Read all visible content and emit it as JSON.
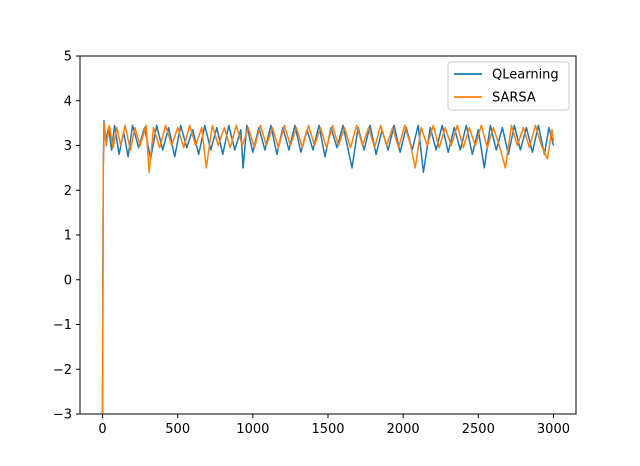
{
  "chart_data": {
    "type": "line",
    "title": "",
    "xlabel": "",
    "ylabel": "",
    "xlim": [
      -150,
      3150
    ],
    "ylim": [
      -3,
      5
    ],
    "grid": false,
    "legend_position": "top-right",
    "x_ticks": [
      {
        "value": 0,
        "label": "0"
      },
      {
        "value": 500,
        "label": "500"
      },
      {
        "value": 1000,
        "label": "1000"
      },
      {
        "value": 1500,
        "label": "1500"
      },
      {
        "value": 2000,
        "label": "2000"
      },
      {
        "value": 2500,
        "label": "2500"
      },
      {
        "value": 3000,
        "label": "3000"
      }
    ],
    "y_ticks": [
      {
        "value": -3,
        "label": "−3"
      },
      {
        "value": -2,
        "label": "−2"
      },
      {
        "value": -1,
        "label": "−1"
      },
      {
        "value": 0,
        "label": "0"
      },
      {
        "value": 1,
        "label": "1"
      },
      {
        "value": 2,
        "label": "2"
      },
      {
        "value": 3,
        "label": "3"
      },
      {
        "value": 4,
        "label": "4"
      },
      {
        "value": 5,
        "label": "5"
      }
    ],
    "series": [
      {
        "name": "QLearning",
        "color": "#1f77b4",
        "points": [
          [
            0,
            -3.0
          ],
          [
            5,
            2.6
          ],
          [
            10,
            3.55
          ],
          [
            20,
            3.1
          ],
          [
            40,
            3.4
          ],
          [
            60,
            2.9
          ],
          [
            80,
            3.45
          ],
          [
            110,
            2.8
          ],
          [
            140,
            3.3
          ],
          [
            170,
            2.75
          ],
          [
            200,
            3.45
          ],
          [
            240,
            2.95
          ],
          [
            280,
            3.4
          ],
          [
            320,
            2.7
          ],
          [
            360,
            3.45
          ],
          [
            400,
            2.9
          ],
          [
            440,
            3.4
          ],
          [
            480,
            2.75
          ],
          [
            520,
            3.45
          ],
          [
            560,
            2.95
          ],
          [
            600,
            3.35
          ],
          [
            640,
            2.8
          ],
          [
            680,
            3.45
          ],
          [
            720,
            2.9
          ],
          [
            760,
            3.4
          ],
          [
            800,
            2.8
          ],
          [
            840,
            3.45
          ],
          [
            880,
            2.9
          ],
          [
            920,
            3.35
          ],
          [
            935,
            2.5
          ],
          [
            960,
            3.45
          ],
          [
            1000,
            2.85
          ],
          [
            1040,
            3.4
          ],
          [
            1080,
            2.9
          ],
          [
            1120,
            3.45
          ],
          [
            1160,
            2.8
          ],
          [
            1200,
            3.4
          ],
          [
            1240,
            2.9
          ],
          [
            1280,
            3.45
          ],
          [
            1320,
            2.85
          ],
          [
            1360,
            3.35
          ],
          [
            1400,
            2.9
          ],
          [
            1440,
            3.45
          ],
          [
            1480,
            2.75
          ],
          [
            1520,
            3.4
          ],
          [
            1560,
            2.95
          ],
          [
            1600,
            3.45
          ],
          [
            1660,
            2.5
          ],
          [
            1700,
            3.4
          ],
          [
            1740,
            2.9
          ],
          [
            1780,
            3.45
          ],
          [
            1820,
            2.8
          ],
          [
            1860,
            3.35
          ],
          [
            1900,
            2.9
          ],
          [
            1940,
            3.45
          ],
          [
            1980,
            2.85
          ],
          [
            2020,
            3.4
          ],
          [
            2060,
            2.9
          ],
          [
            2100,
            3.45
          ],
          [
            2135,
            2.4
          ],
          [
            2180,
            3.4
          ],
          [
            2220,
            2.9
          ],
          [
            2260,
            3.45
          ],
          [
            2300,
            2.85
          ],
          [
            2340,
            3.4
          ],
          [
            2380,
            2.9
          ],
          [
            2420,
            3.45
          ],
          [
            2460,
            2.8
          ],
          [
            2500,
            3.35
          ],
          [
            2540,
            2.5
          ],
          [
            2580,
            3.45
          ],
          [
            2620,
            2.9
          ],
          [
            2660,
            3.4
          ],
          [
            2700,
            2.8
          ],
          [
            2740,
            3.45
          ],
          [
            2780,
            2.9
          ],
          [
            2820,
            3.4
          ],
          [
            2860,
            2.85
          ],
          [
            2900,
            3.45
          ],
          [
            2940,
            2.8
          ],
          [
            2970,
            3.4
          ],
          [
            3000,
            3.0
          ]
        ]
      },
      {
        "name": "SARSA",
        "color": "#ff7f0e",
        "points": [
          [
            0,
            -3.0
          ],
          [
            5,
            2.5
          ],
          [
            12,
            3.5
          ],
          [
            25,
            3.0
          ],
          [
            45,
            3.45
          ],
          [
            70,
            2.95
          ],
          [
            95,
            3.4
          ],
          [
            120,
            3.0
          ],
          [
            150,
            3.45
          ],
          [
            185,
            2.9
          ],
          [
            215,
            3.4
          ],
          [
            250,
            3.0
          ],
          [
            290,
            3.45
          ],
          [
            310,
            2.4
          ],
          [
            340,
            3.4
          ],
          [
            380,
            2.95
          ],
          [
            420,
            3.45
          ],
          [
            460,
            3.0
          ],
          [
            500,
            3.4
          ],
          [
            540,
            2.95
          ],
          [
            580,
            3.45
          ],
          [
            620,
            3.0
          ],
          [
            660,
            3.4
          ],
          [
            690,
            2.5
          ],
          [
            730,
            3.45
          ],
          [
            770,
            3.0
          ],
          [
            810,
            3.4
          ],
          [
            850,
            2.95
          ],
          [
            890,
            3.45
          ],
          [
            930,
            3.0
          ],
          [
            970,
            3.4
          ],
          [
            1010,
            2.95
          ],
          [
            1050,
            3.45
          ],
          [
            1090,
            3.0
          ],
          [
            1130,
            3.4
          ],
          [
            1170,
            2.95
          ],
          [
            1210,
            3.45
          ],
          [
            1250,
            3.0
          ],
          [
            1290,
            3.4
          ],
          [
            1330,
            2.95
          ],
          [
            1370,
            3.45
          ],
          [
            1410,
            3.0
          ],
          [
            1450,
            3.4
          ],
          [
            1490,
            2.95
          ],
          [
            1530,
            3.45
          ],
          [
            1570,
            3.0
          ],
          [
            1610,
            3.4
          ],
          [
            1650,
            2.95
          ],
          [
            1690,
            3.45
          ],
          [
            1730,
            3.0
          ],
          [
            1770,
            3.4
          ],
          [
            1810,
            2.95
          ],
          [
            1850,
            3.45
          ],
          [
            1890,
            3.0
          ],
          [
            1930,
            3.4
          ],
          [
            1970,
            2.95
          ],
          [
            2010,
            3.45
          ],
          [
            2050,
            3.0
          ],
          [
            2080,
            2.5
          ],
          [
            2120,
            3.4
          ],
          [
            2160,
            3.0
          ],
          [
            2200,
            3.45
          ],
          [
            2240,
            2.95
          ],
          [
            2280,
            3.4
          ],
          [
            2320,
            3.0
          ],
          [
            2360,
            3.45
          ],
          [
            2400,
            2.95
          ],
          [
            2440,
            3.4
          ],
          [
            2480,
            3.0
          ],
          [
            2520,
            3.45
          ],
          [
            2560,
            2.95
          ],
          [
            2600,
            3.4
          ],
          [
            2640,
            3.0
          ],
          [
            2680,
            2.5
          ],
          [
            2720,
            3.45
          ],
          [
            2760,
            3.0
          ],
          [
            2800,
            3.4
          ],
          [
            2840,
            2.95
          ],
          [
            2880,
            3.45
          ],
          [
            2920,
            3.0
          ],
          [
            2960,
            2.7
          ],
          [
            2990,
            3.35
          ],
          [
            3000,
            3.1
          ]
        ]
      }
    ]
  }
}
